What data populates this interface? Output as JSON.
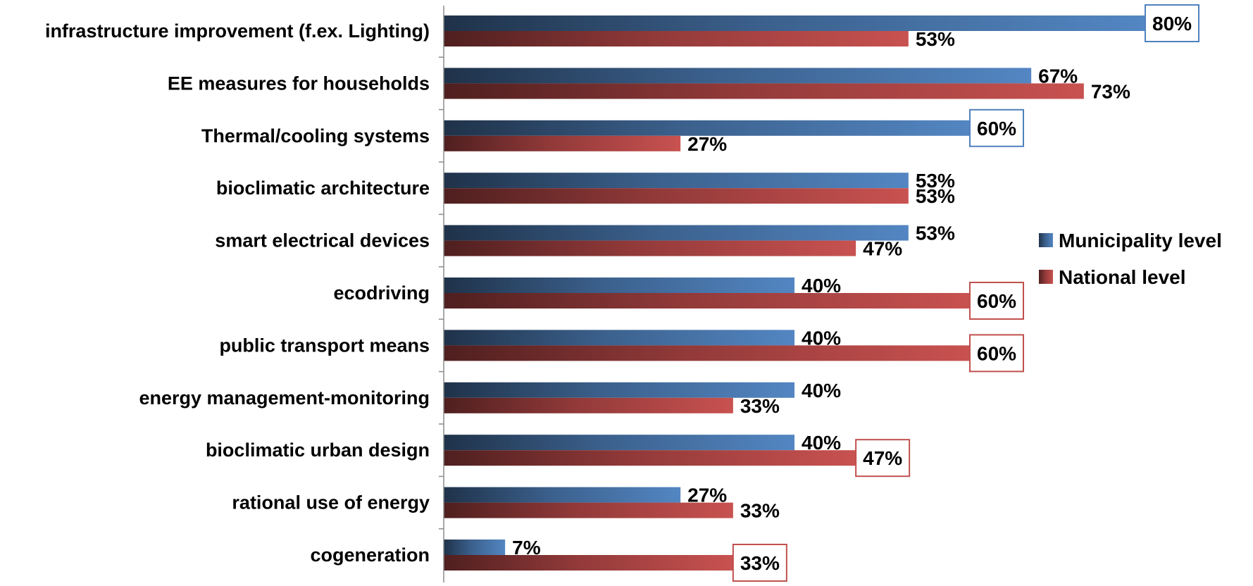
{
  "chart_data": {
    "type": "bar",
    "orientation": "horizontal",
    "categories": [
      "infrastructure improvement (f.ex. Lighting)",
      "EE measures for households",
      "Thermal/cooling systems",
      "bioclimatic architecture",
      "smart electrical devices",
      "ecodriving",
      "public transport means",
      "energy management-monitoring",
      "bioclimatic urban design",
      "rational use of energy",
      "cogeneration"
    ],
    "series": [
      {
        "name": "Municipality level",
        "color": "#4f81bd",
        "values": [
          80,
          67,
          60,
          53,
          53,
          40,
          40,
          40,
          40,
          27,
          7
        ],
        "labels": [
          "80%",
          "67%",
          "60%",
          "53%",
          "53%",
          "40%",
          "40%",
          "40%",
          "40%",
          "27%",
          "7%"
        ],
        "boxed": [
          true,
          false,
          true,
          false,
          false,
          false,
          false,
          false,
          false,
          false,
          false
        ]
      },
      {
        "name": "National level",
        "color": "#c0504d",
        "values": [
          53,
          73,
          27,
          53,
          47,
          60,
          60,
          33,
          47,
          33,
          33
        ],
        "labels": [
          "53%",
          "73%",
          "27%",
          "53%",
          "47%",
          "60%",
          "60%",
          "33%",
          "47%",
          "33%",
          "33%"
        ],
        "boxed": [
          false,
          false,
          false,
          false,
          false,
          true,
          true,
          false,
          true,
          false,
          true
        ]
      }
    ],
    "xlim": [
      0,
      80
    ],
    "value_unit": "%",
    "grid": false,
    "legend_position": "right"
  }
}
